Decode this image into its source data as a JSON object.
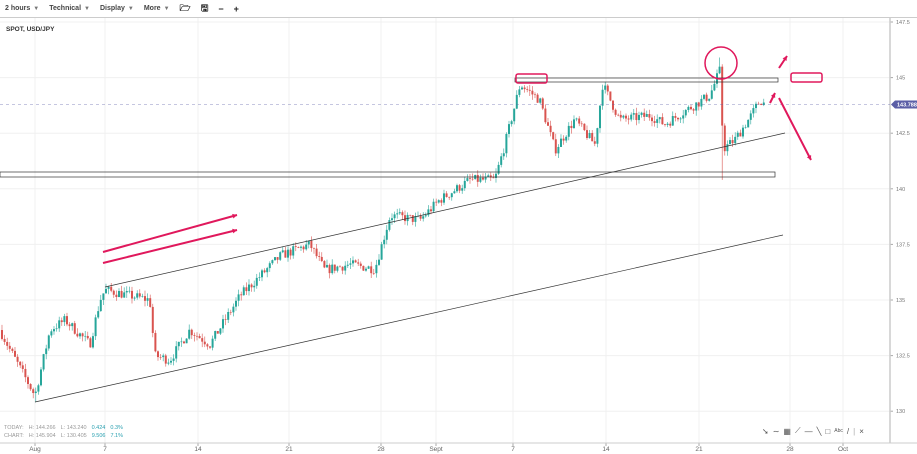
{
  "toolbar": {
    "interval": "2 hours",
    "technical": "Technical",
    "display": "Display",
    "more": "More",
    "icons": [
      "folder-open-icon",
      "save-icon",
      "zoom-out-icon",
      "zoom-in-icon"
    ]
  },
  "symbol": "SPOT, USD/JPY",
  "legend": {
    "today": {
      "label": "TODAY:",
      "high": "H: 144.266",
      "low": "L: 143.240",
      "change": "0.424",
      "pct": "0.3%"
    },
    "chart": {
      "label": "CHART:",
      "high": "H: 145.904",
      "low": "L: 130.405",
      "change": "9.506",
      "pct": "7.1%"
    }
  },
  "drawing_tools": [
    "arrow-icon",
    "curve-icon",
    "fibonacci-icon",
    "pitchfork-icon",
    "horizontal-line-icon",
    "trendline-icon",
    "rectangle-icon",
    "text-icon",
    "line-icon",
    "close-icon"
  ],
  "colors": {
    "up": "#26a69a",
    "down": "#d9534f",
    "accent": "#e0185c",
    "last_price": "#5b5ea6"
  },
  "chart_data": {
    "type": "candlestick",
    "title": "SPOT, USD/JPY",
    "interval": "2 hours",
    "x_ticks": [
      "Aug",
      "7",
      "14",
      "21",
      "28",
      "Sept",
      "7",
      "14",
      "21",
      "28",
      "Oct"
    ],
    "y_ticks": [
      "147.5",
      "145",
      "142.5",
      "140",
      "137.5",
      "135",
      "132.5",
      "130"
    ],
    "ylim": [
      129.8,
      148
    ],
    "last_price": "143.788",
    "grid": true,
    "price_path": [
      {
        "date": "Jul 29 00:00",
        "price": 133.65
      },
      {
        "date": "Jul 29 21:00",
        "price": 132.75
      },
      {
        "date": "Aug 1 00:00",
        "price": 130.7,
        "low": 130.405
      },
      {
        "date": "Aug 2 07:00",
        "price": 133.65
      },
      {
        "date": "Aug 3 14:00",
        "price": 134.1
      },
      {
        "date": "Aug 5 17:00",
        "price": 133.0
      },
      {
        "date": "Aug 6 14:00",
        "price": 135.0
      },
      {
        "date": "Aug 7 00:00",
        "price": 135.45
      },
      {
        "date": "Aug 10 09:00",
        "price": 135.0
      },
      {
        "date": "Aug 10 18:00",
        "price": 132.5
      },
      {
        "date": "Aug 11 21:00",
        "price": 132.3
      },
      {
        "date": "Aug 13 09:00",
        "price": 133.65
      },
      {
        "date": "Aug 14 22:00",
        "price": 133.0
      },
      {
        "date": "Aug 17 06:00",
        "price": 135.2
      },
      {
        "date": "Aug 20 09:00",
        "price": 137.0
      },
      {
        "date": "Aug 22 14:00",
        "price": 137.5
      },
      {
        "date": "Aug 23 17:00",
        "price": 136.35
      },
      {
        "date": "Aug 25 15:00",
        "price": 136.6
      },
      {
        "date": "Aug 27 13:00",
        "price": 136.4
      },
      {
        "date": "Aug 28 16:00",
        "price": 138.8
      },
      {
        "date": "Aug 30 20:00",
        "price": 138.6
      },
      {
        "date": "Sep 1 07:00",
        "price": 139.5
      },
      {
        "date": "Sep 3 16:00",
        "price": 140.4
      },
      {
        "date": "Sep 5 14:00",
        "price": 140.4
      },
      {
        "date": "Sep 6 09:00",
        "price": 142.0
      },
      {
        "date": "Sep 7 13:00",
        "price": 144.7
      },
      {
        "date": "Sep 9 00:00",
        "price": 144.0
      },
      {
        "date": "Sep 10 04:00",
        "price": 141.75
      },
      {
        "date": "Sep 11 15:00",
        "price": 143.1
      },
      {
        "date": "Sep 13 04:00",
        "price": 142.0
      },
      {
        "date": "Sep 13 18:00",
        "price": 144.7
      },
      {
        "date": "Sep 15 01:00",
        "price": 143.1
      },
      {
        "date": "Sep 17 08:00",
        "price": 143.3
      },
      {
        "date": "Sep 18 10:00",
        "price": 142.9
      },
      {
        "date": "Sep 19 23:00",
        "price": 143.5
      },
      {
        "date": "Sep 21 20:00",
        "price": 144.2
      },
      {
        "date": "Sep 22 14:00",
        "price": 145.3,
        "high": 145.904
      },
      {
        "date": "Sep 22 21:00",
        "price": 141.8,
        "low": 140.4
      },
      {
        "date": "Sep 23 18:00",
        "price": 142.2
      },
      {
        "date": "Sep 24 22:00",
        "price": 143.2
      },
      {
        "date": "Sep 25 17:00",
        "price": 144.0
      },
      {
        "date": "Sep 26 02:00",
        "price": 143.788
      }
    ]
  }
}
